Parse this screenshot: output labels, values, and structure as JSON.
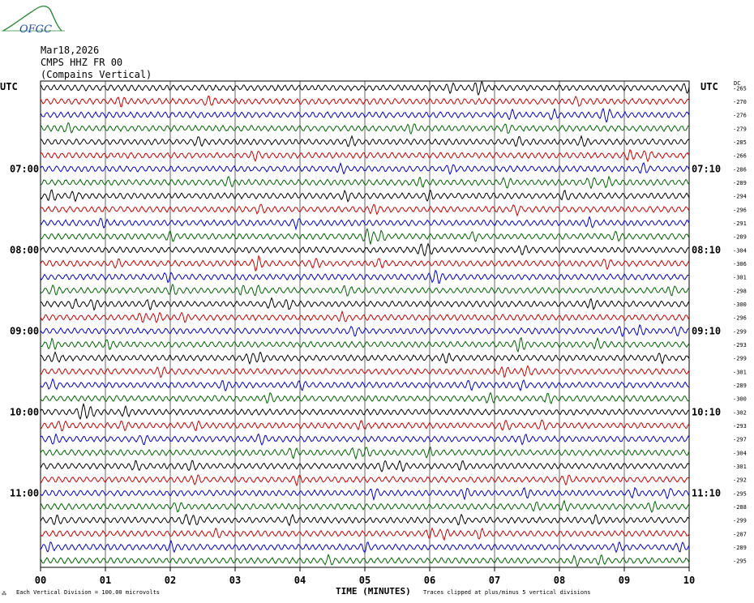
{
  "logo": {
    "text": "OFGC"
  },
  "header": {
    "date": "Mar18,2026",
    "station": "CMPS HHZ FR 00",
    "location": "(Compains Vertical)"
  },
  "left_axis_label": "UTC",
  "right_axis_label": "UTC",
  "dc_label": "DC",
  "xlabel": "TIME (MINUTES)",
  "footer": {
    "left_mark": "⁂",
    "scale_note": "Each Vertical Division =  100.00 microvolts",
    "clip_note": "Traces clipped at plus/minus 5 vertical divisions"
  },
  "chart_data": {
    "type": "line",
    "title": "",
    "x_ticks": [
      "00",
      "01",
      "02",
      "03",
      "04",
      "05",
      "06",
      "07",
      "08",
      "09",
      "10"
    ],
    "xlim": [
      0,
      10
    ],
    "trace_colors": [
      "#000000",
      "#cc0000",
      "#0000cc",
      "#006400"
    ],
    "grid": true,
    "left_time_labels": [
      {
        "row": 6,
        "text": "07:00"
      },
      {
        "row": 12,
        "text": "08:00"
      },
      {
        "row": 18,
        "text": "09:00"
      },
      {
        "row": 24,
        "text": "10:00"
      },
      {
        "row": 30,
        "text": "11:00"
      }
    ],
    "right_time_labels": [
      {
        "row": 6,
        "text": "07:10"
      },
      {
        "row": 12,
        "text": "08:10"
      },
      {
        "row": 18,
        "text": "09:10"
      },
      {
        "row": 24,
        "text": "10:10"
      },
      {
        "row": 30,
        "text": "11:10"
      }
    ],
    "dc_offsets": [
      -265,
      -270,
      -276,
      -279,
      -285,
      -266,
      -286,
      -289,
      -294,
      -296,
      -291,
      -289,
      -304,
      -306,
      -301,
      -298,
      -300,
      -296,
      -299,
      -293,
      -299,
      -301,
      -289,
      -300,
      -302,
      -293,
      -297,
      -304,
      -301,
      -292,
      -295,
      -288,
      -299,
      -287,
      -289,
      -295
    ]
  }
}
